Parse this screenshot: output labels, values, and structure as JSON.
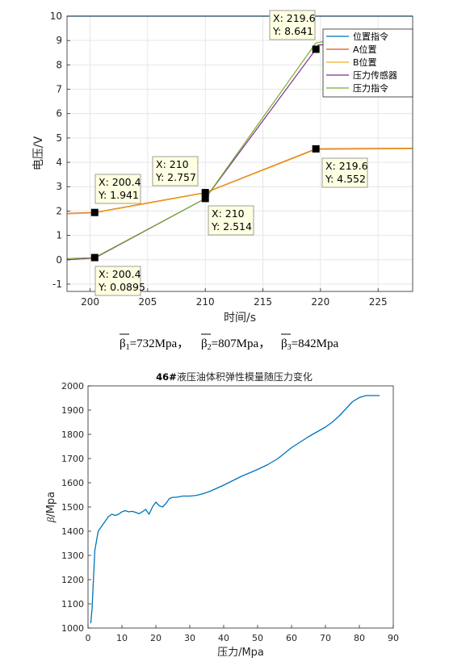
{
  "chart_data": [
    {
      "type": "line",
      "title": "",
      "xlabel": "时间/s",
      "ylabel": "电压/V",
      "xlim": [
        198,
        228
      ],
      "ylim": [
        -1.3,
        10
      ],
      "xticks": [
        "200",
        "205",
        "210",
        "215",
        "220",
        "225"
      ],
      "yticks": [
        "-1",
        "0",
        "1",
        "2",
        "3",
        "4",
        "5",
        "6",
        "7",
        "8",
        "9",
        "10"
      ],
      "grid": true,
      "legend": "top-right",
      "series": [
        {
          "name": "位置指令",
          "color": "#0072bd",
          "points": [
            [
              198,
              10
            ],
            [
              228,
              10
            ]
          ]
        },
        {
          "name": "A位置",
          "color": "#d95319",
          "points": [
            [
              198,
              1.9
            ],
            [
              200.4,
              1.941
            ],
            [
              210,
              2.757
            ],
            [
              219.6,
              4.552
            ],
            [
              228,
              4.58
            ]
          ]
        },
        {
          "name": "B位置",
          "color": "#edb120",
          "points": [
            [
              198,
              1.88
            ],
            [
              200.4,
              1.92
            ],
            [
              210,
              2.74
            ],
            [
              219.6,
              4.53
            ],
            [
              228,
              4.56
            ]
          ]
        },
        {
          "name": "压力传感器",
          "color": "#7e2f8e",
          "points": [
            [
              198,
              0.0
            ],
            [
              200.4,
              0.07
            ],
            [
              210,
              2.514
            ],
            [
              219.6,
              8.641
            ],
            [
              219.8,
              8.82
            ],
            [
              228,
              8.85
            ]
          ]
        },
        {
          "name": "压力指令",
          "color": "#77ac30",
          "points": [
            [
              198,
              0.05
            ],
            [
              200.4,
              0.0895
            ],
            [
              210,
              2.514
            ],
            [
              219.6,
              8.9
            ],
            [
              220.2,
              8.95
            ],
            [
              228,
              8.95
            ]
          ]
        }
      ],
      "datatips": [
        {
          "xlabel": "X: 219.6",
          "ylabel": "Y: 8.641",
          "x": 219.6,
          "y": 8.641
        },
        {
          "xlabel": "X: 200.4",
          "ylabel": "Y: 1.941",
          "x": 200.4,
          "y": 1.941
        },
        {
          "xlabel": "X: 210",
          "ylabel": "Y: 2.757",
          "x": 210,
          "y": 2.757
        },
        {
          "xlabel": "X: 210",
          "ylabel": "Y: 2.514",
          "x": 210,
          "y": 2.514
        },
        {
          "xlabel": "X: 219.6",
          "ylabel": "Y: 4.552",
          "x": 219.6,
          "y": 4.552
        },
        {
          "xlabel": "X: 200.4",
          "ylabel": "Y: 0.0895",
          "x": 200.4,
          "y": 0.0895
        }
      ]
    },
    {
      "type": "line",
      "title": "46#液压油体积弹性模量随压力变化",
      "title_bold": "46#",
      "title_rest": "液压油体积弹性模量随压力变化",
      "xlabel": "压力/Mpa",
      "ylabel_greek": "β",
      "ylabel_rest": "/Mpa",
      "xlim": [
        0,
        90
      ],
      "ylim": [
        1000,
        2000
      ],
      "xticks": [
        "0",
        "10",
        "20",
        "30",
        "40",
        "50",
        "60",
        "70",
        "80",
        "90"
      ],
      "yticks": [
        "1000",
        "1100",
        "1200",
        "1300",
        "1400",
        "1500",
        "1600",
        "1700",
        "1800",
        "1900",
        "2000"
      ],
      "grid": false,
      "series": [
        {
          "name": "",
          "color": "#0072bd",
          "x": [
            0.8,
            1.2,
            2,
            3,
            4,
            5,
            6,
            7,
            8,
            9,
            10,
            11,
            12,
            13,
            14,
            15,
            16,
            17,
            18,
            19,
            20,
            21,
            22,
            23,
            24,
            25,
            26,
            28,
            30,
            32,
            34,
            36,
            40,
            45,
            50,
            53,
            56,
            60,
            65,
            70,
            72,
            74,
            76,
            78,
            80,
            82,
            84,
            86
          ],
          "y": [
            1020,
            1080,
            1320,
            1400,
            1420,
            1440,
            1460,
            1470,
            1465,
            1470,
            1480,
            1485,
            1480,
            1482,
            1478,
            1472,
            1480,
            1490,
            1470,
            1500,
            1520,
            1505,
            1500,
            1515,
            1535,
            1540,
            1540,
            1545,
            1545,
            1548,
            1555,
            1565,
            1590,
            1625,
            1655,
            1675,
            1700,
            1745,
            1790,
            1830,
            1850,
            1875,
            1905,
            1935,
            1952,
            1960,
            1960,
            1960
          ]
        }
      ]
    }
  ],
  "equation": {
    "b1_sym": "β",
    "b1_sub": "1",
    "b1_val": "=732Mpa，",
    "b2_sym": "β",
    "b2_sub": "2",
    "b2_val": "=807Mpa，",
    "b3_sym": "β",
    "b3_sub": "3",
    "b3_val": "=842Mpa"
  }
}
